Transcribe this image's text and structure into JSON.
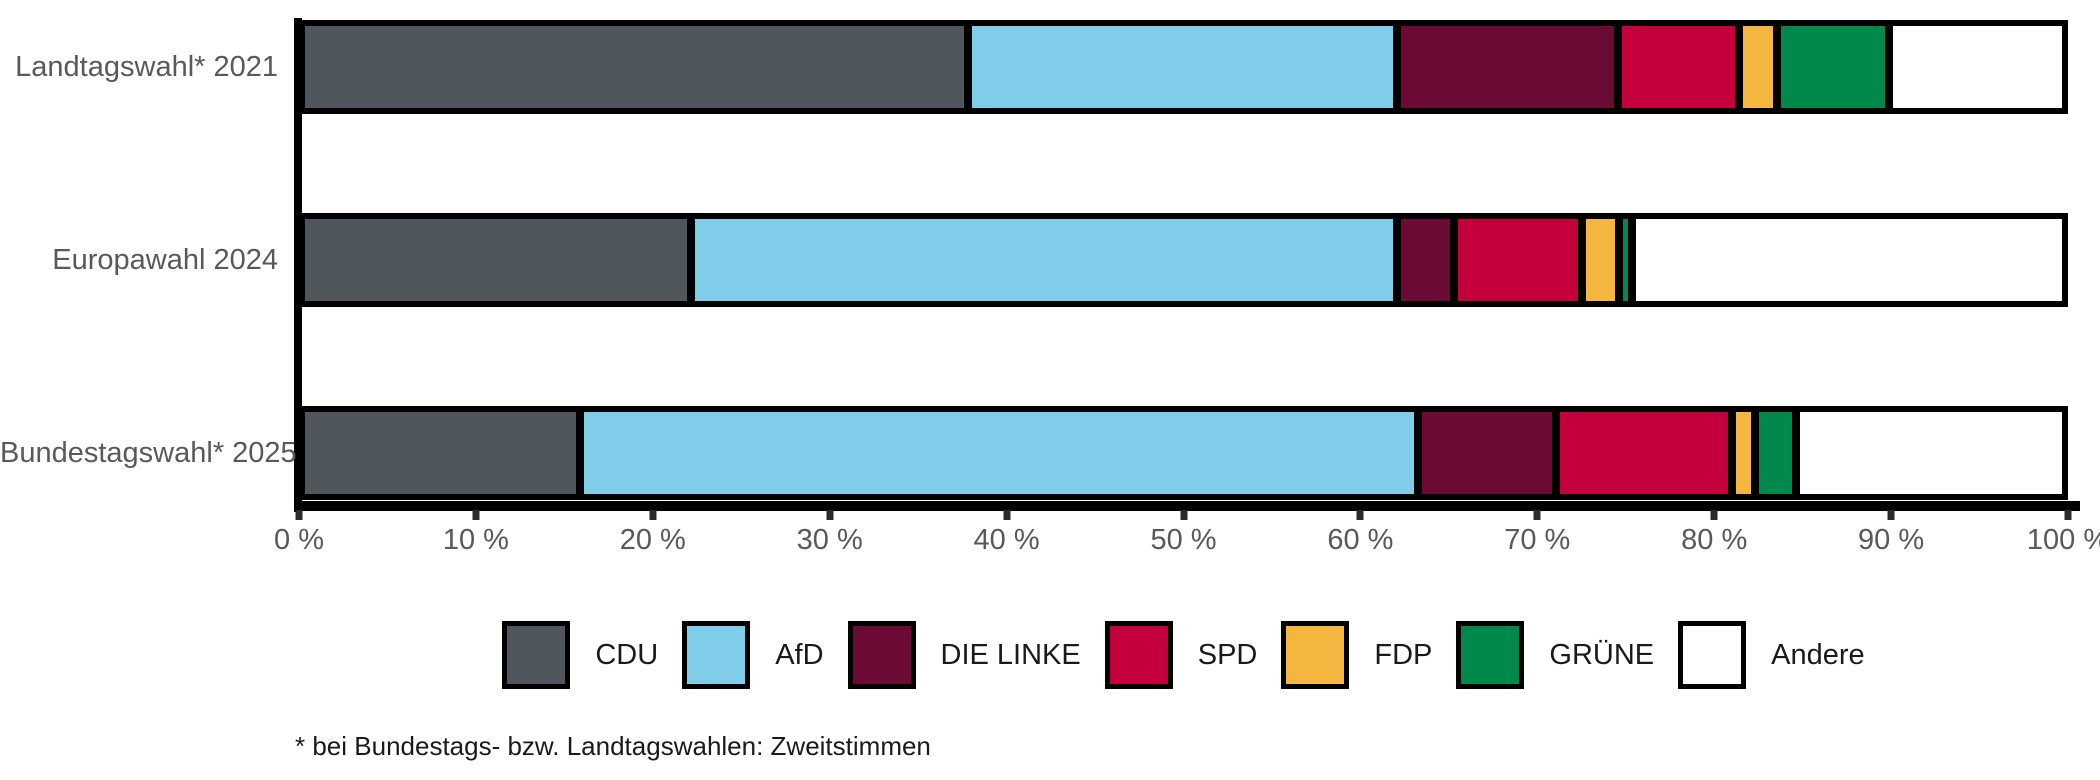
{
  "chart_data": {
    "type": "bar",
    "orientation": "horizontal",
    "stacked": true,
    "grid": false,
    "categories": [
      "Landtagswahl* 2021",
      "Europawahl 2024",
      "Bundestagswahl* 2025"
    ],
    "series": [
      {
        "name": "CDU",
        "color": "#4F575C",
        "values": [
          37.8,
          22.1,
          15.8
        ]
      },
      {
        "name": "AfD",
        "color": "#7FCDE9",
        "values": [
          24.3,
          40.0,
          47.5
        ]
      },
      {
        "name": "DIE LINKE",
        "color": "#6C0A36",
        "values": [
          12.5,
          3.2,
          7.8
        ]
      },
      {
        "name": "SPD",
        "color": "#C3003C",
        "values": [
          6.9,
          7.3,
          10.0
        ]
      },
      {
        "name": "FDP",
        "color": "#F4B63E",
        "values": [
          2.1,
          2.1,
          1.3
        ]
      },
      {
        "name": "GRÜNE",
        "color": "#00894A",
        "values": [
          6.4,
          0.7,
          2.3
        ]
      },
      {
        "name": "Andere",
        "color": "#FFFFFF",
        "values": [
          10.0,
          24.6,
          15.3
        ]
      }
    ],
    "x_axis": {
      "min": 0,
      "max": 100,
      "tick_labels": [
        "0 %",
        "10 %",
        "20 %",
        "30 %",
        "40 %",
        "50 %",
        "60 %",
        "70 %",
        "80 %",
        "90 %",
        "100 %"
      ]
    },
    "legend_position": "bottom",
    "footnote": "* bei Bundestags- bzw. Landtagswahlen: Zweitstimmen"
  },
  "style": {
    "axis_color": "#000000",
    "segment_border_color": "#000000",
    "label_color": "#58595B",
    "legend_text_color": "#1A1A1A"
  }
}
